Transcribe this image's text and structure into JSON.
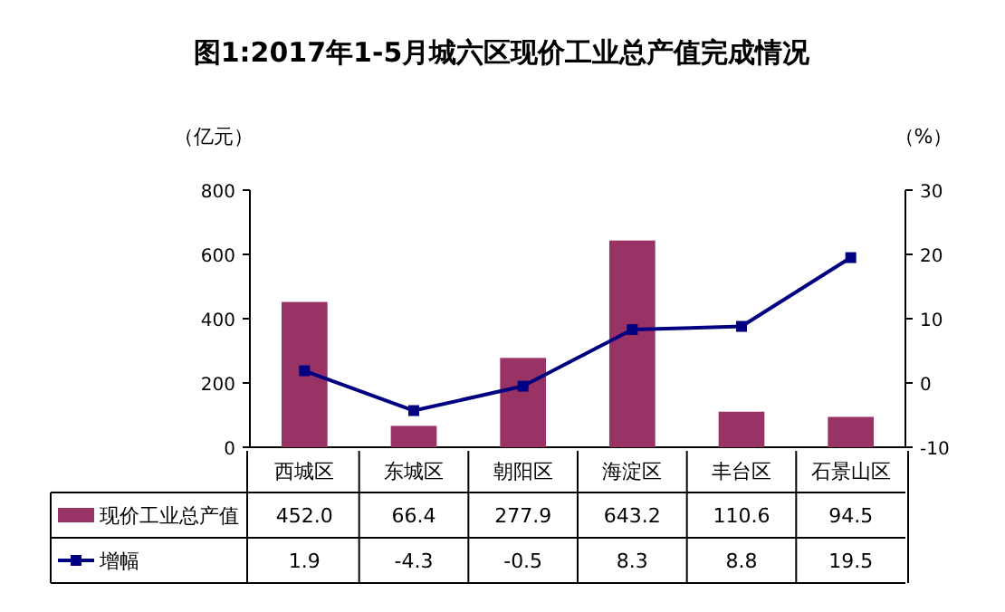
{
  "chart_data": {
    "type": "bar",
    "title": "图1:2017年1-5月城六区现价工业总产值完成情况",
    "ylabel": "（亿元）",
    "y2label": "（%）",
    "categories": [
      "西城区",
      "东城区",
      "朝阳区",
      "海淀区",
      "丰台区",
      "石景山区"
    ],
    "series": [
      {
        "name": "现价工业总产值",
        "color": "#993366",
        "values": [
          452.0,
          66.4,
          277.9,
          643.2,
          110.6,
          94.5
        ],
        "value_labels": [
          "452.0",
          "66.4",
          "277.9",
          "643.2",
          "110.6",
          "94.5"
        ]
      },
      {
        "name": "增幅",
        "type": "line",
        "axis": "y2",
        "color": "#000080",
        "marker": "square",
        "values": [
          1.9,
          -4.3,
          -0.5,
          8.3,
          8.8,
          19.5
        ],
        "value_labels": [
          "1.9",
          "-4.3",
          "-0.5",
          "8.3",
          "8.8",
          "19.5"
        ]
      }
    ],
    "ylim": [
      0,
      800
    ],
    "yticks": [
      0,
      200,
      400,
      600,
      800
    ],
    "y2lim": [
      -10,
      30
    ],
    "y2ticks": [
      -10,
      0,
      10,
      20,
      30
    ],
    "legend": "bottom",
    "grid": false
  }
}
